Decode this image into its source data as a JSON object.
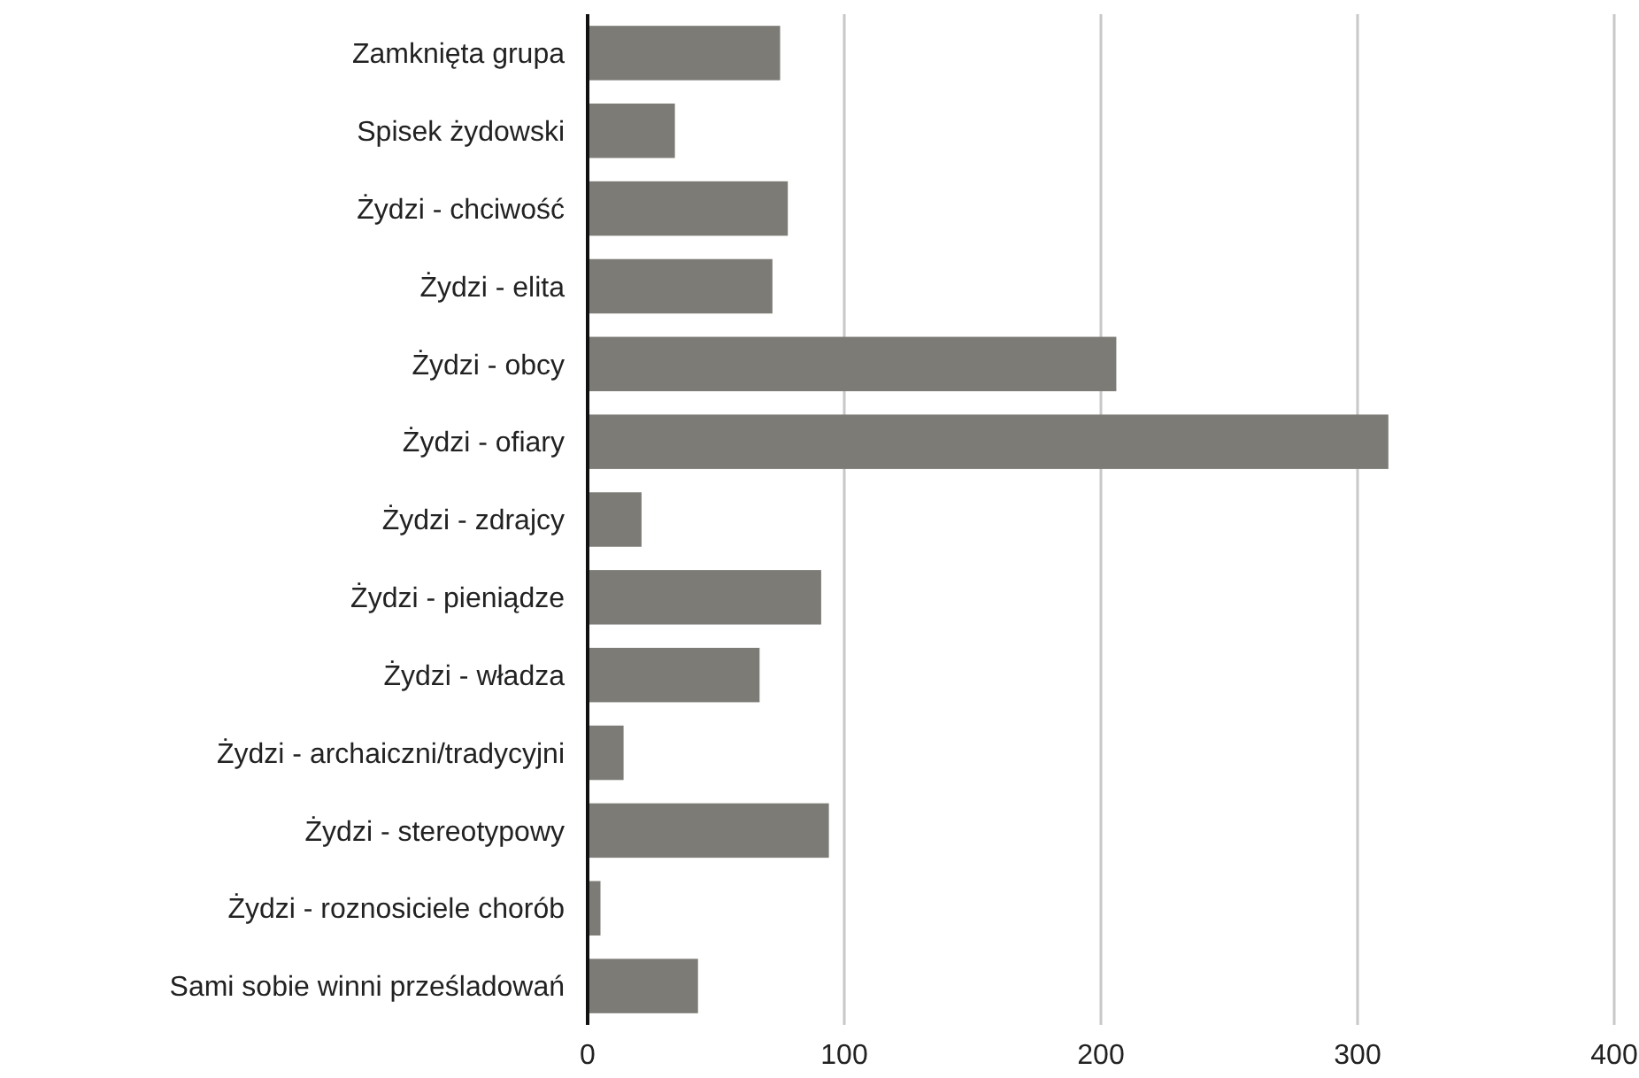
{
  "chart_data": {
    "type": "bar",
    "orientation": "horizontal",
    "categories": [
      "Zamknięta grupa",
      "Spisek żydowski",
      "Żydzi - chciwość",
      "Żydzi - elita",
      "Żydzi - obcy",
      "Żydzi - ofiary",
      "Żydzi - zdrajcy",
      "Żydzi - pieniądze",
      "Żydzi - władza",
      "Żydzi - archaiczni/tradycyjni",
      "Żydzi - stereotypowy",
      "Żydzi - roznosiciele chorób",
      "Sami sobie winni prześladowań"
    ],
    "values": [
      75,
      34,
      78,
      72,
      206,
      312,
      21,
      91,
      67,
      14,
      94,
      5,
      43
    ],
    "color": "#7d7b76",
    "xlim": [
      0,
      400
    ],
    "xticks": [
      0,
      100,
      200,
      300,
      400
    ],
    "grid": "x"
  }
}
